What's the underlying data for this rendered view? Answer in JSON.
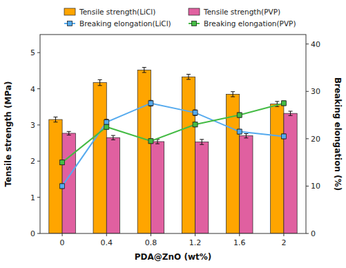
{
  "chart_data": {
    "type": "bar",
    "xlabel": "PDA@ZnO (wt%)",
    "ylabel": "Tensile strength (MPa)",
    "y2label": "Breaking elongation (%)",
    "categories": [
      "0",
      "0.4",
      "0.8",
      "1.2",
      "1.6",
      "2"
    ],
    "series": [
      {
        "name": "Tensile strength(LiCl)",
        "type": "bar",
        "color": "#FFA500",
        "values": [
          3.15,
          4.17,
          4.52,
          4.33,
          3.85,
          3.58
        ],
        "errors": [
          0.07,
          0.08,
          0.07,
          0.07,
          0.07,
          0.07
        ]
      },
      {
        "name": "Tensile strength(PVP)",
        "type": "bar",
        "color": "#E060A0",
        "values": [
          2.77,
          2.65,
          2.54,
          2.53,
          2.7,
          3.32
        ],
        "errors": [
          0.05,
          0.06,
          0.06,
          0.07,
          0.06,
          0.06
        ]
      },
      {
        "name": "Breaking elongation(LiCl)",
        "type": "line",
        "axis": "y2",
        "color": "#55AAEE",
        "marker": "square",
        "values": [
          10.0,
          23.5,
          27.5,
          25.5,
          21.5,
          20.5
        ],
        "errors": [
          0.5,
          0.6,
          0.6,
          0.6,
          0.5,
          0.5
        ]
      },
      {
        "name": "Breaking elongation(PVP)",
        "type": "line",
        "axis": "y2",
        "color": "#44BB44",
        "marker": "square",
        "values": [
          15.0,
          22.5,
          19.5,
          23.0,
          25.0,
          27.5
        ],
        "errors": [
          0.5,
          0.5,
          0.5,
          0.5,
          0.5,
          0.5
        ]
      }
    ],
    "ylim": [
      0,
      5.5
    ],
    "yticks": [
      0,
      1,
      2,
      3,
      4,
      5
    ],
    "y2lim": [
      0,
      42
    ],
    "y2ticks": [
      0,
      10,
      20,
      30,
      40
    ],
    "grid": false,
    "legend": "upper right"
  }
}
